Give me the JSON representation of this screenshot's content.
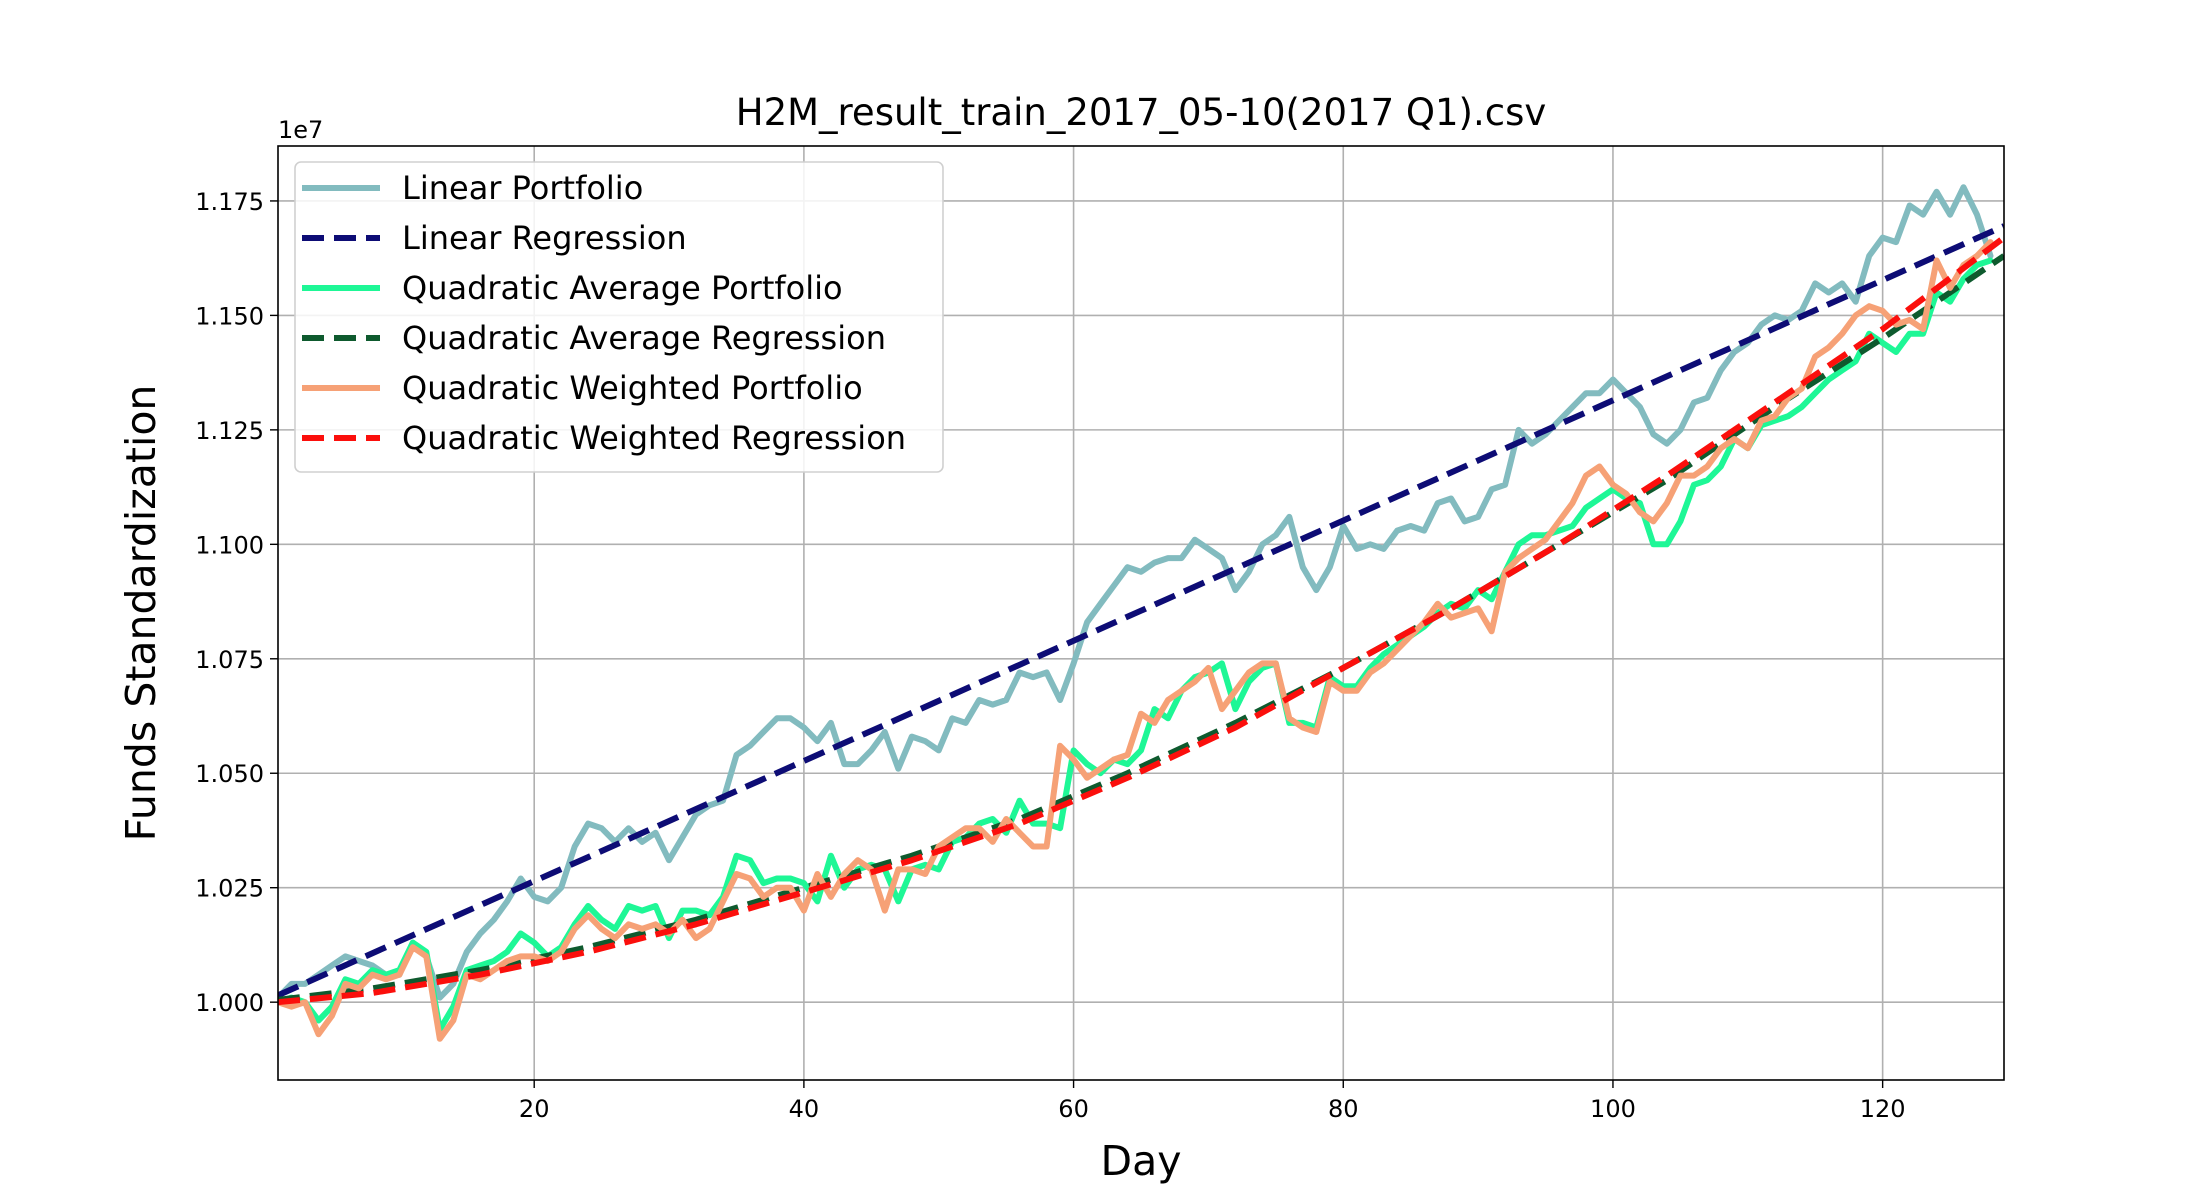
{
  "chart_data": {
    "type": "line",
    "title": "H2M_result_train_2017_05-10(2017 Q1).csv",
    "xlabel": "Day",
    "ylabel": "Funds Standardization",
    "offset_text": "1e7",
    "xlim": [
      1,
      129
    ],
    "ylim": [
      9830000,
      11870000
    ],
    "xticks": [
      20,
      40,
      60,
      80,
      100,
      120
    ],
    "yticks": [
      10000000,
      10250000,
      10500000,
      10750000,
      11000000,
      11250000,
      11500000,
      11750000
    ],
    "ytick_labels": [
      "1.000",
      "1.025",
      "1.050",
      "1.075",
      "1.100",
      "1.125",
      "1.150",
      "1.175"
    ],
    "grid": true,
    "legend_position": "upper-left",
    "series": [
      {
        "name": "Linear Portfolio",
        "color": "#82bbbf",
        "style": "solid",
        "x": [
          1,
          2,
          3,
          4,
          5,
          6,
          7,
          8,
          9,
          10,
          11,
          12,
          13,
          14,
          15,
          16,
          17,
          18,
          19,
          20,
          21,
          22,
          23,
          24,
          25,
          26,
          27,
          28,
          29,
          30,
          31,
          32,
          33,
          34,
          35,
          36,
          37,
          38,
          39,
          40,
          41,
          42,
          43,
          44,
          45,
          46,
          47,
          48,
          49,
          50,
          51,
          52,
          53,
          54,
          55,
          56,
          57,
          58,
          59,
          60,
          61,
          62,
          63,
          64,
          65,
          66,
          67,
          68,
          69,
          70,
          71,
          72,
          73,
          74,
          75,
          76,
          77,
          78,
          79,
          80,
          81,
          82,
          83,
          84,
          85,
          86,
          87,
          88,
          89,
          90,
          91,
          92,
          93,
          94,
          95,
          96,
          97,
          98,
          99,
          100,
          101,
          102,
          103,
          104,
          105,
          106,
          107,
          108,
          109,
          110,
          111,
          112,
          113,
          114,
          115,
          116,
          117,
          118,
          119,
          120,
          121,
          122,
          123,
          124,
          125,
          126,
          127,
          128
        ],
        "values": [
          10010000,
          10040000,
          10040000,
          10060000,
          10080000,
          10100000,
          10090000,
          10080000,
          10060000,
          10060000,
          10130000,
          10100000,
          10010000,
          10040000,
          10110000,
          10150000,
          10180000,
          10220000,
          10270000,
          10230000,
          10220000,
          10250000,
          10340000,
          10390000,
          10380000,
          10350000,
          10380000,
          10350000,
          10370000,
          10310000,
          10360000,
          10410000,
          10430000,
          10440000,
          10540000,
          10560000,
          10590000,
          10620000,
          10620000,
          10600000,
          10570000,
          10610000,
          10520000,
          10520000,
          10550000,
          10590000,
          10510000,
          10580000,
          10570000,
          10550000,
          10620000,
          10610000,
          10660000,
          10650000,
          10660000,
          10720000,
          10710000,
          10720000,
          10660000,
          10740000,
          10830000,
          10870000,
          10910000,
          10950000,
          10940000,
          10960000,
          10970000,
          10970000,
          11010000,
          10990000,
          10970000,
          10900000,
          10940000,
          11000000,
          11020000,
          11060000,
          10950000,
          10900000,
          10950000,
          11040000,
          10990000,
          11000000,
          10990000,
          11030000,
          11040000,
          11030000,
          11090000,
          11100000,
          11050000,
          11060000,
          11120000,
          11130000,
          11250000,
          11220000,
          11240000,
          11270000,
          11300000,
          11330000,
          11330000,
          11360000,
          11330000,
          11300000,
          11240000,
          11220000,
          11250000,
          11310000,
          11320000,
          11380000,
          11420000,
          11440000,
          11480000,
          11500000,
          11490000,
          11510000,
          11570000,
          11550000,
          11570000,
          11530000,
          11630000,
          11670000,
          11660000,
          11740000,
          11720000,
          11770000,
          11720000,
          11780000,
          11720000,
          11630000
        ]
      },
      {
        "name": "Linear Regression",
        "color": "#0d0c75",
        "style": "dashed",
        "x": [
          1,
          129
        ],
        "values": [
          10015000,
          11695000
        ]
      },
      {
        "name": "Quadratic Average Portfolio",
        "color": "#1ef796",
        "style": "solid",
        "x": [
          1,
          2,
          3,
          4,
          5,
          6,
          7,
          8,
          9,
          10,
          11,
          12,
          13,
          14,
          15,
          16,
          17,
          18,
          19,
          20,
          21,
          22,
          23,
          24,
          25,
          26,
          27,
          28,
          29,
          30,
          31,
          32,
          33,
          34,
          35,
          36,
          37,
          38,
          39,
          40,
          41,
          42,
          43,
          44,
          45,
          46,
          47,
          48,
          49,
          50,
          51,
          52,
          53,
          54,
          55,
          56,
          57,
          58,
          59,
          60,
          61,
          62,
          63,
          64,
          65,
          66,
          67,
          68,
          69,
          70,
          71,
          72,
          73,
          74,
          75,
          76,
          77,
          78,
          79,
          80,
          81,
          82,
          83,
          84,
          85,
          86,
          87,
          88,
          89,
          90,
          91,
          92,
          93,
          94,
          95,
          96,
          97,
          98,
          99,
          100,
          101,
          102,
          103,
          104,
          105,
          106,
          107,
          108,
          109,
          110,
          111,
          112,
          113,
          114,
          115,
          116,
          117,
          118,
          119,
          120,
          121,
          122,
          123,
          124,
          125,
          126,
          127,
          128
        ],
        "values": [
          10000000,
          10010000,
          10000000,
          9960000,
          9990000,
          10050000,
          10040000,
          10070000,
          10060000,
          10070000,
          10130000,
          10110000,
          9940000,
          9990000,
          10070000,
          10080000,
          10090000,
          10110000,
          10150000,
          10130000,
          10100000,
          10120000,
          10170000,
          10210000,
          10180000,
          10160000,
          10210000,
          10200000,
          10210000,
          10140000,
          10200000,
          10200000,
          10190000,
          10230000,
          10320000,
          10310000,
          10260000,
          10270000,
          10270000,
          10260000,
          10220000,
          10320000,
          10250000,
          10290000,
          10300000,
          10290000,
          10220000,
          10290000,
          10300000,
          10290000,
          10350000,
          10360000,
          10390000,
          10400000,
          10370000,
          10440000,
          10390000,
          10390000,
          10380000,
          10550000,
          10520000,
          10500000,
          10530000,
          10520000,
          10550000,
          10640000,
          10620000,
          10680000,
          10710000,
          10720000,
          10740000,
          10640000,
          10700000,
          10730000,
          10740000,
          10610000,
          10610000,
          10600000,
          10710000,
          10690000,
          10690000,
          10730000,
          10760000,
          10780000,
          10800000,
          10820000,
          10850000,
          10870000,
          10860000,
          10900000,
          10880000,
          10940000,
          11000000,
          11020000,
          11020000,
          11030000,
          11040000,
          11080000,
          11100000,
          11120000,
          11100000,
          11090000,
          11000000,
          11000000,
          11050000,
          11130000,
          11140000,
          11170000,
          11230000,
          11210000,
          11260000,
          11270000,
          11280000,
          11300000,
          11330000,
          11360000,
          11380000,
          11400000,
          11460000,
          11440000,
          11420000,
          11460000,
          11460000,
          11550000,
          11530000,
          11580000,
          11610000,
          11620000
        ]
      },
      {
        "name": "Quadratic Average Regression",
        "color": "#0e5a2e",
        "style": "dashed",
        "x": [
          1,
          8,
          16,
          24,
          32,
          40,
          48,
          56,
          64,
          72,
          80,
          88,
          96,
          104,
          112,
          120,
          129
        ],
        "values": [
          10005000,
          10030000,
          10070000,
          10120000,
          10180000,
          10250000,
          10320000,
          10400000,
          10500000,
          10610000,
          10730000,
          10860000,
          11000000,
          11140000,
          11300000,
          11450000,
          11630000
        ]
      },
      {
        "name": "Quadratic Weighted Portfolio",
        "color": "#f6a176",
        "style": "solid",
        "x": [
          1,
          2,
          3,
          4,
          5,
          6,
          7,
          8,
          9,
          10,
          11,
          12,
          13,
          14,
          15,
          16,
          17,
          18,
          19,
          20,
          21,
          22,
          23,
          24,
          25,
          26,
          27,
          28,
          29,
          30,
          31,
          32,
          33,
          34,
          35,
          36,
          37,
          38,
          39,
          40,
          41,
          42,
          43,
          44,
          45,
          46,
          47,
          48,
          49,
          50,
          51,
          52,
          53,
          54,
          55,
          56,
          57,
          58,
          59,
          60,
          61,
          62,
          63,
          64,
          65,
          66,
          67,
          68,
          69,
          70,
          71,
          72,
          73,
          74,
          75,
          76,
          77,
          78,
          79,
          80,
          81,
          82,
          83,
          84,
          85,
          86,
          87,
          88,
          89,
          90,
          91,
          92,
          93,
          94,
          95,
          96,
          97,
          98,
          99,
          100,
          101,
          102,
          103,
          104,
          105,
          106,
          107,
          108,
          109,
          110,
          111,
          112,
          113,
          114,
          115,
          116,
          117,
          118,
          119,
          120,
          121,
          122,
          123,
          124,
          125,
          126,
          127,
          128
        ],
        "values": [
          10000000,
          9990000,
          10000000,
          9930000,
          9970000,
          10040000,
          10030000,
          10060000,
          10050000,
          10060000,
          10120000,
          10100000,
          9920000,
          9960000,
          10060000,
          10050000,
          10070000,
          10090000,
          10100000,
          10100000,
          10090000,
          10110000,
          10160000,
          10190000,
          10160000,
          10140000,
          10170000,
          10160000,
          10170000,
          10150000,
          10180000,
          10140000,
          10160000,
          10220000,
          10280000,
          10270000,
          10230000,
          10250000,
          10250000,
          10200000,
          10280000,
          10230000,
          10280000,
          10310000,
          10290000,
          10200000,
          10290000,
          10290000,
          10280000,
          10340000,
          10360000,
          10380000,
          10380000,
          10350000,
          10400000,
          10370000,
          10340000,
          10340000,
          10560000,
          10530000,
          10490000,
          10510000,
          10530000,
          10540000,
          10630000,
          10610000,
          10660000,
          10680000,
          10700000,
          10730000,
          10640000,
          10680000,
          10720000,
          10740000,
          10740000,
          10620000,
          10600000,
          10590000,
          10700000,
          10680000,
          10680000,
          10720000,
          10740000,
          10770000,
          10800000,
          10830000,
          10870000,
          10840000,
          10850000,
          10860000,
          10810000,
          10940000,
          10970000,
          10990000,
          11010000,
          11050000,
          11090000,
          11150000,
          11170000,
          11130000,
          11110000,
          11070000,
          11050000,
          11090000,
          11150000,
          11150000,
          11170000,
          11210000,
          11230000,
          11210000,
          11270000,
          11280000,
          11320000,
          11340000,
          11410000,
          11430000,
          11460000,
          11500000,
          11520000,
          11510000,
          11480000,
          11490000,
          11470000,
          11620000,
          11560000,
          11610000,
          11630000,
          11660000
        ]
      },
      {
        "name": "Quadratic Weighted Regression",
        "color": "#fb0f0c",
        "style": "dashed",
        "x": [
          1,
          8,
          16,
          24,
          32,
          40,
          48,
          56,
          64,
          72,
          80,
          88,
          96,
          104,
          112,
          120,
          129
        ],
        "values": [
          10000000,
          10020000,
          10060000,
          10110000,
          10170000,
          10240000,
          10310000,
          10390000,
          10490000,
          10600000,
          10730000,
          10860000,
          11000000,
          11150000,
          11310000,
          11470000,
          11670000
        ]
      }
    ]
  }
}
